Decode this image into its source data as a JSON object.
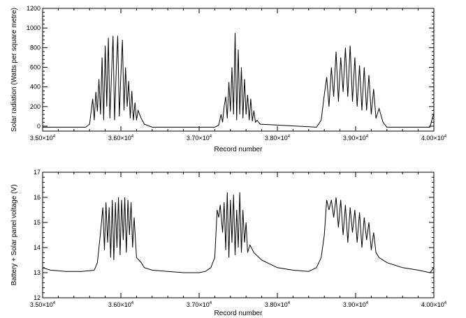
{
  "chart_data": [
    {
      "type": "line",
      "title": "",
      "xlabel": "Record number",
      "ylabel": "Solar radiation (Watts per square metre)",
      "xlim": [
        35000,
        40000
      ],
      "ylim": [
        -50,
        1200
      ],
      "x_ticks": [
        {
          "value": 35000,
          "mantissa": "3.50×10",
          "exp": "4"
        },
        {
          "value": 36000,
          "mantissa": "3.60×10",
          "exp": "4"
        },
        {
          "value": 37000,
          "mantissa": "3.70×10",
          "exp": "4"
        },
        {
          "value": 38000,
          "mantissa": "3.80×10",
          "exp": "4"
        },
        {
          "value": 39000,
          "mantissa": "3.90×10",
          "exp": "4"
        },
        {
          "value": 40000,
          "mantissa": "4.00×10",
          "exp": "4"
        }
      ],
      "y_ticks": [
        0,
        200,
        400,
        600,
        800,
        1000,
        1200
      ],
      "grid": false,
      "series": [
        {
          "x": [
            35000,
            35550,
            35600,
            35640,
            35660,
            35680,
            35700,
            35720,
            35740,
            35760,
            35780,
            35800,
            35820,
            35840,
            35860,
            35880,
            35900,
            35920,
            35940,
            35960,
            35980,
            36000,
            36020,
            36040,
            36060,
            36080,
            36100,
            36120,
            36140,
            36160,
            36180,
            36200,
            36220,
            36260,
            36300,
            36400,
            36430,
            36700,
            37200,
            37250,
            37280,
            37300,
            37320,
            37340,
            37360,
            37380,
            37400,
            37420,
            37440,
            37460,
            37480,
            37500,
            37520,
            37540,
            37560,
            37580,
            37600,
            37620,
            37640,
            37660,
            37680,
            37700,
            37720,
            37740,
            37780,
            38500,
            38560,
            38600,
            38630,
            38660,
            38690,
            38720,
            38750,
            38780,
            38810,
            38840,
            38870,
            38900,
            38930,
            38960,
            38990,
            39020,
            39050,
            39080,
            39110,
            39140,
            39170,
            39200,
            39230,
            39260,
            39300,
            39350,
            39400,
            39950,
            39980,
            40000
          ],
          "y": [
            -10,
            -10,
            20,
            280,
            60,
            350,
            150,
            480,
            120,
            700,
            60,
            820,
            200,
            900,
            80,
            520,
            920,
            60,
            560,
            920,
            100,
            520,
            880,
            160,
            600,
            200,
            460,
            80,
            360,
            60,
            240,
            60,
            160,
            80,
            20,
            -10,
            -10,
            -10,
            -10,
            10,
            120,
            40,
            200,
            300,
            80,
            450,
            150,
            600,
            120,
            950,
            60,
            780,
            120,
            600,
            80,
            480,
            120,
            320,
            60,
            280,
            50,
            160,
            40,
            60,
            20,
            -10,
            60,
            320,
            500,
            200,
            600,
            300,
            760,
            250,
            700,
            350,
            800,
            300,
            820,
            250,
            700,
            200,
            620,
            160,
            600,
            160,
            520,
            120,
            380,
            80,
            180,
            40,
            -10,
            -10,
            80,
            130
          ]
        }
      ]
    },
    {
      "type": "line",
      "title": "",
      "xlabel": "Record number",
      "ylabel": "Battery + Solar panel voltage (V)",
      "xlim": [
        35000,
        40000
      ],
      "ylim": [
        12,
        17
      ],
      "x_ticks": [
        {
          "value": 35000,
          "mantissa": "3.50×10",
          "exp": "4"
        },
        {
          "value": 36000,
          "mantissa": "3.60×10",
          "exp": "4"
        },
        {
          "value": 37000,
          "mantissa": "3.70×10",
          "exp": "4"
        },
        {
          "value": 38000,
          "mantissa": "3.80×10",
          "exp": "4"
        },
        {
          "value": 39000,
          "mantissa": "3.90×10",
          "exp": "4"
        },
        {
          "value": 40000,
          "mantissa": "4.00×10",
          "exp": "4"
        }
      ],
      "y_ticks": [
        12,
        13,
        14,
        15,
        16,
        17
      ],
      "grid": false,
      "series": [
        {
          "x": [
            35000,
            35100,
            35300,
            35500,
            35660,
            35700,
            35740,
            35770,
            35790,
            35810,
            35830,
            35850,
            35870,
            35890,
            35910,
            35930,
            35950,
            35970,
            35990,
            36010,
            36030,
            36050,
            36070,
            36090,
            36110,
            36130,
            36150,
            36170,
            36200,
            36260,
            36300,
            36400,
            36600,
            36800,
            37000,
            37080,
            37150,
            37200,
            37230,
            37250,
            37270,
            37300,
            37320,
            37340,
            37360,
            37380,
            37400,
            37420,
            37440,
            37460,
            37480,
            37500,
            37520,
            37540,
            37560,
            37580,
            37600,
            37620,
            37650,
            37700,
            37800,
            38000,
            38200,
            38400,
            38500,
            38560,
            38600,
            38630,
            38660,
            38690,
            38720,
            38750,
            38780,
            38810,
            38840,
            38870,
            38900,
            38930,
            38960,
            38990,
            39020,
            39050,
            39080,
            39110,
            39140,
            39170,
            39200,
            39230,
            39260,
            39300,
            39400,
            39600,
            39800,
            39950,
            40000
          ],
          "y": [
            13.2,
            13.1,
            13.05,
            13.05,
            13.1,
            13.4,
            14.6,
            15.6,
            13.9,
            15.8,
            14.2,
            15.6,
            13.6,
            15.9,
            13.5,
            15.8,
            14.0,
            16.0,
            13.7,
            15.9,
            14.3,
            16.0,
            13.8,
            15.9,
            14.5,
            15.8,
            14.0,
            15.2,
            13.6,
            13.4,
            13.2,
            13.1,
            13.05,
            13.0,
            13.0,
            13.05,
            13.2,
            13.6,
            15.5,
            15.2,
            15.7,
            14.6,
            15.8,
            13.9,
            16.2,
            13.6,
            15.9,
            14.2,
            16.1,
            13.7,
            15.5,
            14.0,
            16.2,
            13.8,
            15.5,
            14.2,
            15.0,
            13.8,
            14.1,
            13.8,
            13.5,
            13.2,
            13.1,
            13.05,
            13.2,
            13.6,
            14.5,
            15.9,
            15.5,
            15.9,
            15.2,
            16.0,
            14.8,
            15.9,
            14.5,
            15.7,
            14.2,
            15.6,
            14.6,
            15.5,
            14.2,
            15.4,
            14.0,
            15.2,
            14.3,
            15.0,
            13.9,
            14.6,
            13.8,
            13.6,
            13.4,
            13.2,
            13.1,
            13.0,
            13.2
          ]
        }
      ]
    }
  ]
}
